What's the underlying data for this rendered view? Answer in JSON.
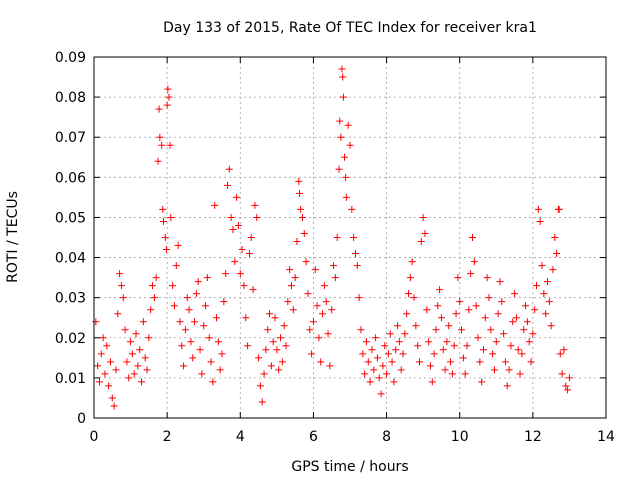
{
  "chart_data": {
    "type": "scatter",
    "title": "Day 133 of 2015, Rate Of TEC Index for receiver kra1",
    "xlabel": "GPS time / hours",
    "ylabel": "ROTI / TECUs",
    "xlim": [
      0,
      14
    ],
    "ylim": [
      0,
      0.09
    ],
    "x_ticks": [
      0,
      2,
      4,
      6,
      8,
      10,
      12,
      14
    ],
    "x_tick_labels": [
      "0",
      "2",
      "4",
      "6",
      "8",
      "10",
      "12",
      "14"
    ],
    "y_ticks": [
      0,
      0.01,
      0.02,
      0.03,
      0.04,
      0.05,
      0.06,
      0.07,
      0.08,
      0.09
    ],
    "y_tick_labels": [
      "0",
      "0.01",
      "0.02",
      "0.03",
      "0.04",
      "0.05",
      "0.06",
      "0.07",
      "0.08",
      "0.09"
    ],
    "grid": true,
    "marker": "+",
    "series": [
      {
        "name": "ROTI",
        "color": "#ff0000",
        "points": [
          [
            0.05,
            0.024
          ],
          [
            0.1,
            0.013
          ],
          [
            0.15,
            0.009
          ],
          [
            0.2,
            0.016
          ],
          [
            0.25,
            0.02
          ],
          [
            0.3,
            0.011
          ],
          [
            0.35,
            0.018
          ],
          [
            0.4,
            0.008
          ],
          [
            0.45,
            0.014
          ],
          [
            0.5,
            0.005
          ],
          [
            0.55,
            0.003
          ],
          [
            0.6,
            0.012
          ],
          [
            0.65,
            0.026
          ],
          [
            0.7,
            0.036
          ],
          [
            0.75,
            0.033
          ],
          [
            0.8,
            0.03
          ],
          [
            0.85,
            0.022
          ],
          [
            0.9,
            0.014
          ],
          [
            0.95,
            0.01
          ],
          [
            1.0,
            0.019
          ],
          [
            1.05,
            0.016
          ],
          [
            1.1,
            0.011
          ],
          [
            1.15,
            0.021
          ],
          [
            1.2,
            0.013
          ],
          [
            1.25,
            0.017
          ],
          [
            1.3,
            0.009
          ],
          [
            1.35,
            0.024
          ],
          [
            1.4,
            0.015
          ],
          [
            1.45,
            0.012
          ],
          [
            1.5,
            0.02
          ],
          [
            1.55,
            0.027
          ],
          [
            1.6,
            0.033
          ],
          [
            1.65,
            0.03
          ],
          [
            1.7,
            0.035
          ],
          [
            1.75,
            0.064
          ],
          [
            1.78,
            0.077
          ],
          [
            1.8,
            0.07
          ],
          [
            1.85,
            0.068
          ],
          [
            1.88,
            0.052
          ],
          [
            1.9,
            0.049
          ],
          [
            1.95,
            0.045
          ],
          [
            1.98,
            0.042
          ],
          [
            2.0,
            0.078
          ],
          [
            2.02,
            0.082
          ],
          [
            2.05,
            0.08
          ],
          [
            2.08,
            0.068
          ],
          [
            2.1,
            0.05
          ],
          [
            2.15,
            0.033
          ],
          [
            2.2,
            0.028
          ],
          [
            2.25,
            0.038
          ],
          [
            2.3,
            0.043
          ],
          [
            2.35,
            0.024
          ],
          [
            2.4,
            0.018
          ],
          [
            2.45,
            0.013
          ],
          [
            2.5,
            0.022
          ],
          [
            2.55,
            0.03
          ],
          [
            2.6,
            0.027
          ],
          [
            2.65,
            0.019
          ],
          [
            2.7,
            0.015
          ],
          [
            2.75,
            0.024
          ],
          [
            2.8,
            0.031
          ],
          [
            2.85,
            0.034
          ],
          [
            2.9,
            0.017
          ],
          [
            2.95,
            0.011
          ],
          [
            3.0,
            0.023
          ],
          [
            3.05,
            0.028
          ],
          [
            3.1,
            0.035
          ],
          [
            3.15,
            0.02
          ],
          [
            3.2,
            0.014
          ],
          [
            3.25,
            0.009
          ],
          [
            3.3,
            0.053
          ],
          [
            3.35,
            0.025
          ],
          [
            3.4,
            0.019
          ],
          [
            3.45,
            0.012
          ],
          [
            3.5,
            0.016
          ],
          [
            3.55,
            0.029
          ],
          [
            3.6,
            0.036
          ],
          [
            3.65,
            0.058
          ],
          [
            3.7,
            0.062
          ],
          [
            3.75,
            0.05
          ],
          [
            3.8,
            0.047
          ],
          [
            3.85,
            0.039
          ],
          [
            3.9,
            0.055
          ],
          [
            3.95,
            0.048
          ],
          [
            4.0,
            0.036
          ],
          [
            4.05,
            0.042
          ],
          [
            4.1,
            0.033
          ],
          [
            4.15,
            0.025
          ],
          [
            4.2,
            0.018
          ],
          [
            4.25,
            0.041
          ],
          [
            4.3,
            0.045
          ],
          [
            4.35,
            0.032
          ],
          [
            4.4,
            0.053
          ],
          [
            4.45,
            0.05
          ],
          [
            4.5,
            0.015
          ],
          [
            4.55,
            0.008
          ],
          [
            4.6,
            0.004
          ],
          [
            4.65,
            0.011
          ],
          [
            4.7,
            0.017
          ],
          [
            4.75,
            0.022
          ],
          [
            4.8,
            0.026
          ],
          [
            4.85,
            0.013
          ],
          [
            4.9,
            0.019
          ],
          [
            4.95,
            0.025
          ],
          [
            5.0,
            0.017
          ],
          [
            5.05,
            0.012
          ],
          [
            5.1,
            0.02
          ],
          [
            5.15,
            0.014
          ],
          [
            5.2,
            0.023
          ],
          [
            5.25,
            0.018
          ],
          [
            5.3,
            0.029
          ],
          [
            5.35,
            0.037
          ],
          [
            5.4,
            0.033
          ],
          [
            5.45,
            0.027
          ],
          [
            5.5,
            0.035
          ],
          [
            5.55,
            0.044
          ],
          [
            5.6,
            0.059
          ],
          [
            5.62,
            0.056
          ],
          [
            5.65,
            0.052
          ],
          [
            5.7,
            0.05
          ],
          [
            5.75,
            0.046
          ],
          [
            5.8,
            0.039
          ],
          [
            5.85,
            0.031
          ],
          [
            5.9,
            0.022
          ],
          [
            5.95,
            0.016
          ],
          [
            6.0,
            0.024
          ],
          [
            6.05,
            0.037
          ],
          [
            6.1,
            0.028
          ],
          [
            6.15,
            0.02
          ],
          [
            6.2,
            0.014
          ],
          [
            6.25,
            0.026
          ],
          [
            6.3,
            0.033
          ],
          [
            6.35,
            0.029
          ],
          [
            6.4,
            0.021
          ],
          [
            6.45,
            0.013
          ],
          [
            6.5,
            0.027
          ],
          [
            6.55,
            0.038
          ],
          [
            6.6,
            0.035
          ],
          [
            6.65,
            0.045
          ],
          [
            6.7,
            0.062
          ],
          [
            6.72,
            0.074
          ],
          [
            6.75,
            0.07
          ],
          [
            6.78,
            0.087
          ],
          [
            6.8,
            0.085
          ],
          [
            6.82,
            0.08
          ],
          [
            6.85,
            0.065
          ],
          [
            6.88,
            0.06
          ],
          [
            6.9,
            0.055
          ],
          [
            6.95,
            0.073
          ],
          [
            7.0,
            0.068
          ],
          [
            7.05,
            0.052
          ],
          [
            7.1,
            0.045
          ],
          [
            7.15,
            0.041
          ],
          [
            7.2,
            0.038
          ],
          [
            7.25,
            0.03
          ],
          [
            7.3,
            0.022
          ],
          [
            7.35,
            0.016
          ],
          [
            7.4,
            0.011
          ],
          [
            7.45,
            0.019
          ],
          [
            7.5,
            0.014
          ],
          [
            7.55,
            0.009
          ],
          [
            7.6,
            0.017
          ],
          [
            7.65,
            0.012
          ],
          [
            7.7,
            0.02
          ],
          [
            7.75,
            0.015
          ],
          [
            7.8,
            0.01
          ],
          [
            7.85,
            0.006
          ],
          [
            7.9,
            0.013
          ],
          [
            7.95,
            0.018
          ],
          [
            8.0,
            0.011
          ],
          [
            8.05,
            0.016
          ],
          [
            8.1,
            0.021
          ],
          [
            8.15,
            0.014
          ],
          [
            8.2,
            0.009
          ],
          [
            8.25,
            0.017
          ],
          [
            8.3,
            0.023
          ],
          [
            8.35,
            0.019
          ],
          [
            8.4,
            0.012
          ],
          [
            8.45,
            0.016
          ],
          [
            8.5,
            0.021
          ],
          [
            8.55,
            0.026
          ],
          [
            8.6,
            0.031
          ],
          [
            8.65,
            0.035
          ],
          [
            8.7,
            0.039
          ],
          [
            8.75,
            0.03
          ],
          [
            8.8,
            0.023
          ],
          [
            8.85,
            0.018
          ],
          [
            8.9,
            0.014
          ],
          [
            8.95,
            0.044
          ],
          [
            9.0,
            0.05
          ],
          [
            9.05,
            0.046
          ],
          [
            9.1,
            0.027
          ],
          [
            9.15,
            0.019
          ],
          [
            9.2,
            0.013
          ],
          [
            9.25,
            0.009
          ],
          [
            9.3,
            0.016
          ],
          [
            9.35,
            0.022
          ],
          [
            9.4,
            0.028
          ],
          [
            9.45,
            0.032
          ],
          [
            9.5,
            0.025
          ],
          [
            9.55,
            0.017
          ],
          [
            9.6,
            0.012
          ],
          [
            9.65,
            0.019
          ],
          [
            9.7,
            0.023
          ],
          [
            9.75,
            0.014
          ],
          [
            9.8,
            0.011
          ],
          [
            9.85,
            0.018
          ],
          [
            9.9,
            0.026
          ],
          [
            9.95,
            0.035
          ],
          [
            10.0,
            0.029
          ],
          [
            10.05,
            0.022
          ],
          [
            10.1,
            0.015
          ],
          [
            10.15,
            0.011
          ],
          [
            10.2,
            0.018
          ],
          [
            10.25,
            0.027
          ],
          [
            10.3,
            0.036
          ],
          [
            10.35,
            0.045
          ],
          [
            10.4,
            0.039
          ],
          [
            10.45,
            0.028
          ],
          [
            10.5,
            0.02
          ],
          [
            10.55,
            0.014
          ],
          [
            10.6,
            0.009
          ],
          [
            10.65,
            0.017
          ],
          [
            10.7,
            0.025
          ],
          [
            10.75,
            0.035
          ],
          [
            10.8,
            0.03
          ],
          [
            10.85,
            0.022
          ],
          [
            10.9,
            0.016
          ],
          [
            10.95,
            0.012
          ],
          [
            11.0,
            0.019
          ],
          [
            11.05,
            0.026
          ],
          [
            11.1,
            0.034
          ],
          [
            11.15,
            0.029
          ],
          [
            11.2,
            0.021
          ],
          [
            11.25,
            0.014
          ],
          [
            11.3,
            0.008
          ],
          [
            11.35,
            0.012
          ],
          [
            11.4,
            0.018
          ],
          [
            11.45,
            0.024
          ],
          [
            11.5,
            0.031
          ],
          [
            11.55,
            0.025
          ],
          [
            11.6,
            0.017
          ],
          [
            11.65,
            0.011
          ],
          [
            11.7,
            0.016
          ],
          [
            11.75,
            0.022
          ],
          [
            11.8,
            0.028
          ],
          [
            11.85,
            0.024
          ],
          [
            11.9,
            0.019
          ],
          [
            11.95,
            0.014
          ],
          [
            12.0,
            0.021
          ],
          [
            12.05,
            0.027
          ],
          [
            12.1,
            0.033
          ],
          [
            12.15,
            0.052
          ],
          [
            12.2,
            0.049
          ],
          [
            12.25,
            0.038
          ],
          [
            12.3,
            0.031
          ],
          [
            12.35,
            0.026
          ],
          [
            12.4,
            0.034
          ],
          [
            12.45,
            0.029
          ],
          [
            12.5,
            0.023
          ],
          [
            12.55,
            0.037
          ],
          [
            12.6,
            0.045
          ],
          [
            12.65,
            0.041
          ],
          [
            12.7,
            0.052
          ],
          [
            12.72,
            0.052
          ],
          [
            12.75,
            0.016
          ],
          [
            12.8,
            0.011
          ],
          [
            12.85,
            0.017
          ],
          [
            12.9,
            0.008
          ],
          [
            12.95,
            0.007
          ],
          [
            13.0,
            0.01
          ]
        ]
      }
    ]
  }
}
